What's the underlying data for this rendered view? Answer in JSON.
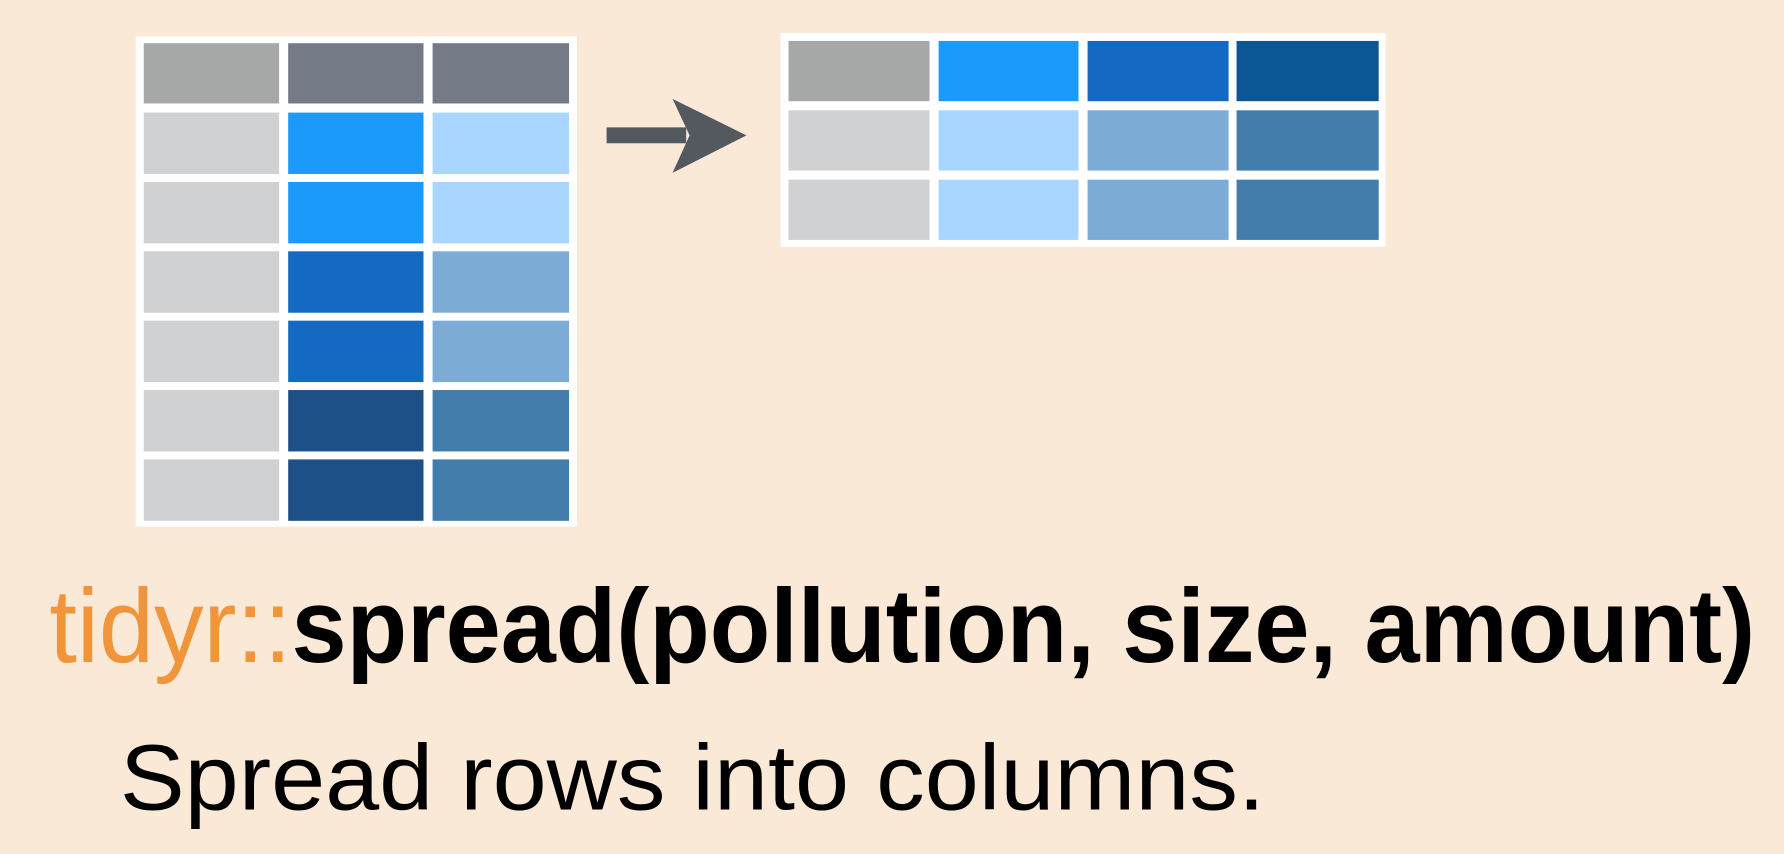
{
  "code": {
    "package": "tidyr::",
    "call": "spread(pollution, size, amount)"
  },
  "caption": "Spread rows into columns."
}
